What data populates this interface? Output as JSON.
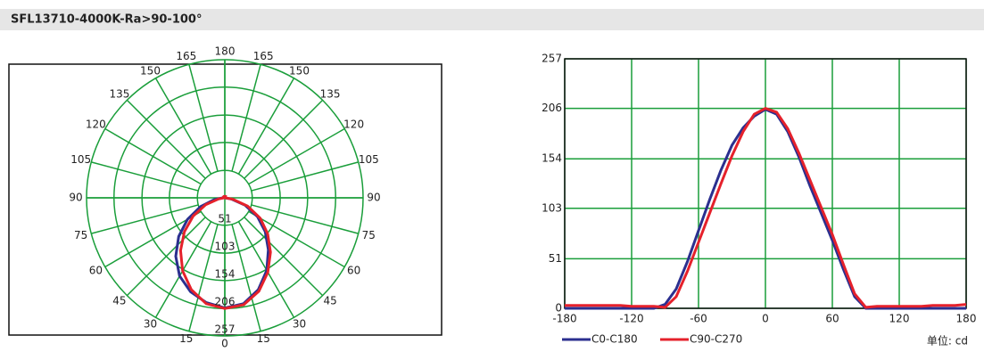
{
  "header": {
    "title": "SFL13710-4000K-Ra>90-100°"
  },
  "chart_data": [
    {
      "type": "polar",
      "rlim": [
        0,
        257
      ],
      "rticks": [
        51,
        103,
        154,
        206,
        257
      ],
      "angle_ticks": [
        0,
        15,
        30,
        45,
        60,
        75,
        90,
        105,
        120,
        135,
        150,
        165,
        180
      ],
      "grid_color": "#1a9e3a"
    },
    {
      "type": "line",
      "x": [
        -180,
        -170,
        -160,
        -150,
        -140,
        -130,
        -120,
        -110,
        -100,
        -90,
        -80,
        -70,
        -60,
        -50,
        -40,
        -30,
        -20,
        -10,
        0,
        10,
        20,
        30,
        40,
        50,
        60,
        70,
        80,
        90,
        100,
        110,
        120,
        130,
        140,
        150,
        160,
        170,
        180
      ],
      "series": [
        {
          "name": "C0-C180",
          "color": "#2b2f8f",
          "values": [
            0,
            0,
            0,
            0,
            0,
            0,
            0,
            0,
            0,
            4,
            20,
            48,
            80,
            112,
            142,
            168,
            186,
            198,
            205,
            200,
            182,
            156,
            126,
            98,
            70,
            40,
            12,
            0,
            0,
            0,
            0,
            0,
            0,
            0,
            0,
            0,
            0
          ]
        },
        {
          "name": "C90-C270",
          "color": "#e5212b",
          "values": [
            3,
            3,
            3,
            3,
            3,
            3,
            2,
            2,
            2,
            1,
            12,
            38,
            68,
            98,
            128,
            157,
            182,
            200,
            206,
            202,
            185,
            160,
            132,
            104,
            76,
            45,
            15,
            1,
            2,
            2,
            2,
            2,
            2,
            3,
            3,
            3,
            4
          ]
        }
      ],
      "xlim": [
        -180,
        180
      ],
      "xticks": [
        -180,
        -120,
        -60,
        0,
        60,
        120,
        180
      ],
      "ylim": [
        0,
        257
      ],
      "yticks": [
        0,
        51,
        103,
        154,
        206,
        257
      ],
      "grid": true,
      "grid_color": "#1a9e3a",
      "unit": "单位: cd"
    }
  ]
}
